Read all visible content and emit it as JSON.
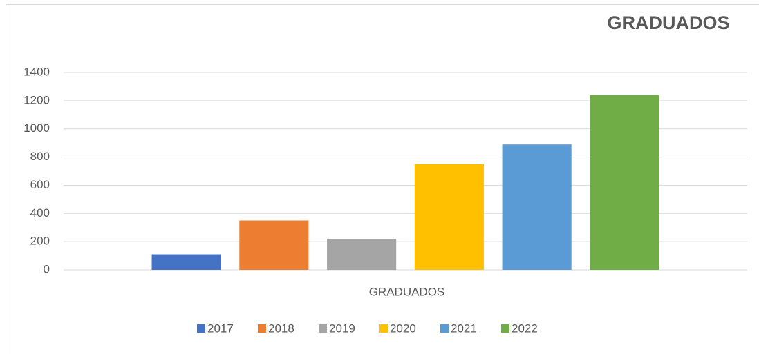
{
  "chart_data": {
    "type": "bar",
    "title": "GRADUADOS",
    "categories": [
      "GRADUADOS"
    ],
    "series": [
      {
        "name": "2017",
        "color": "#4472c4",
        "values": [
          110
        ]
      },
      {
        "name": "2018",
        "color": "#ed7d31",
        "values": [
          350
        ]
      },
      {
        "name": "2019",
        "color": "#a5a5a5",
        "values": [
          220
        ]
      },
      {
        "name": "2020",
        "color": "#ffc000",
        "values": [
          750
        ]
      },
      {
        "name": "2021",
        "color": "#5b9bd5",
        "values": [
          890
        ]
      },
      {
        "name": "2022",
        "color": "#70ad47",
        "values": [
          1240
        ]
      }
    ],
    "ylim": [
      0,
      1400
    ],
    "yticks": [
      0,
      200,
      400,
      600,
      800,
      1000,
      1200,
      1400
    ],
    "grid": true,
    "legend": "bottom"
  }
}
